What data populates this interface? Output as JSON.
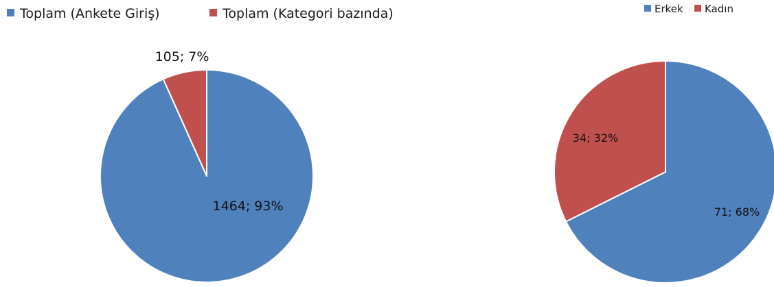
{
  "chart_data": [
    {
      "type": "pie",
      "categories": [
        "Toplam (Ankete Giriş)",
        "Toplam (Kategori bazında)"
      ],
      "values": [
        1464,
        105
      ],
      "percent_labels": [
        "93%",
        "7%"
      ],
      "data_labels": [
        "1464; 93%",
        "105; 7%"
      ],
      "colors": [
        "#4F81BD",
        "#C0504D"
      ],
      "legend_position": "top-left",
      "start_angle_deg": 0,
      "direction": "clockwise"
    },
    {
      "type": "pie",
      "categories": [
        "Erkek",
        "Kadın"
      ],
      "values": [
        71,
        34
      ],
      "percent_labels": [
        "68%",
        "32%"
      ],
      "data_labels": [
        "71; 68%",
        "34; 32%"
      ],
      "colors": [
        "#4F81BD",
        "#C0504D"
      ],
      "legend_position": "top-right",
      "start_angle_deg": 0,
      "direction": "clockwise"
    }
  ]
}
